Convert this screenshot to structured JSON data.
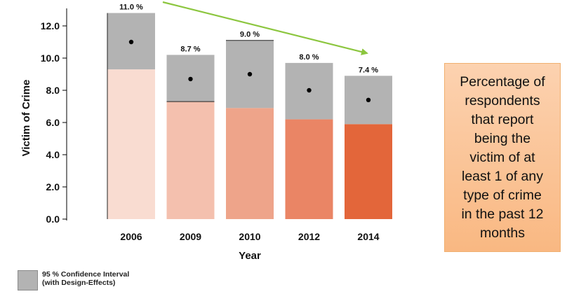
{
  "chart_data": {
    "type": "bar",
    "categories": [
      "2006",
      "2009",
      "2010",
      "2012",
      "2014"
    ],
    "values": [
      11.0,
      8.7,
      9.0,
      8.0,
      7.4
    ],
    "value_labels": [
      "11.0 %",
      "8.7 %",
      "9.0 %",
      "8.0 %",
      "7.4 %"
    ],
    "ci_lower": [
      9.3,
      7.3,
      6.9,
      6.2,
      5.9
    ],
    "ci_upper": [
      12.8,
      10.2,
      11.1,
      9.7,
      8.9
    ],
    "bar_colors": [
      "#f9dcd1",
      "#f4c0ae",
      "#eea48a",
      "#ea8565",
      "#e3663a"
    ],
    "ci_color": "#b3b3b3",
    "xlabel": "Year",
    "ylabel": "Victim of Crime",
    "ylim": [
      0,
      13
    ],
    "yticks": [
      "0.0",
      "2.0",
      "4.0",
      "6.0",
      "8.0",
      "10.0",
      "12.0"
    ],
    "trend_arrow": {
      "from": "2006",
      "to": "2014",
      "color": "#8cc63f"
    },
    "legend": {
      "label": "95 % Confidence Interval (with Design-Effects)"
    }
  },
  "legend_lines": [
    "95 % Confidence Interval",
    "(with Design-Effects)"
  ],
  "note": {
    "lines": [
      "Percentage of",
      "respondents",
      "that report",
      "being the",
      "victim of at",
      "least 1 of any",
      "type of crime",
      "in the past 12",
      "months"
    ]
  }
}
